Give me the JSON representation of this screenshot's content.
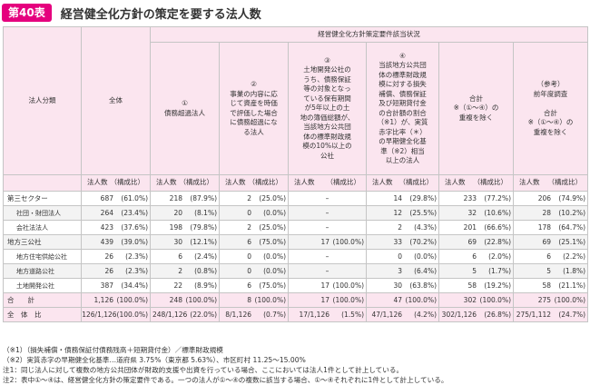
{
  "header": {
    "badge": "第40表",
    "title": "経営健全化方針の策定を要する法人数"
  },
  "table": {
    "group_header": "経営健全化方針策定要件該当状況",
    "col_category": "法人分類",
    "col_total": "全体",
    "col_1": "①\n債務超過法人",
    "col_2": "②\n事業の内容に応\nじて資産を時価\nで評価した場合\nに債務超過にな\nる法人",
    "col_3": "③\n土地開発公社の\nうち、債務保証\n等の対象となっ\nている保有期間\nが5年以上の土\n地の簿価総額が、\n当該地方公共団\n体の標準財政規\n模の10%以上の\n公社",
    "col_4": "④\n当該地方公共団\n体の標準財政規\n模に対する損失\n補償、債務保証\n及び短期貸付金\nの合計額の割合\n（※1）が、実質\n赤字比率（＊）\nの早期健全化基\n準（※2）相当\n以上の法人",
    "col_5": "合計\n※（①〜④）の\n重複を除く",
    "col_6": "（参考）\n前年度調査\n\n合計\n※（①〜④）の\n重複を除く",
    "sub_count": "法人数",
    "sub_ratio": "（構成比）",
    "rows": [
      {
        "name": "第三セクター",
        "sub": false,
        "cells": [
          [
            "687",
            "(61.0%)"
          ],
          [
            "218",
            "(87.9%)"
          ],
          [
            "2",
            "(25.0%)"
          ],
          [
            "–",
            ""
          ],
          [
            "14",
            "(29.8%)"
          ],
          [
            "233",
            "(77.2%)"
          ],
          [
            "206",
            "(74.9%)"
          ]
        ]
      },
      {
        "name": "社団・財団法人",
        "sub": true,
        "cells": [
          [
            "264",
            "(23.4%)"
          ],
          [
            "20",
            "(8.1%)"
          ],
          [
            "0",
            "(0.0%)"
          ],
          [
            "–",
            ""
          ],
          [
            "12",
            "(25.5%)"
          ],
          [
            "32",
            "(10.6%)"
          ],
          [
            "28",
            "(10.2%)"
          ]
        ]
      },
      {
        "name": "会社法法人",
        "sub": true,
        "cells": [
          [
            "423",
            "(37.6%)"
          ],
          [
            "198",
            "(79.8%)"
          ],
          [
            "2",
            "(25.0%)"
          ],
          [
            "–",
            ""
          ],
          [
            "2",
            "(4.3%)"
          ],
          [
            "201",
            "(66.6%)"
          ],
          [
            "178",
            "(64.7%)"
          ]
        ]
      },
      {
        "name": "地方三公社",
        "sub": false,
        "cells": [
          [
            "439",
            "(39.0%)"
          ],
          [
            "30",
            "(12.1%)"
          ],
          [
            "6",
            "(75.0%)"
          ],
          [
            "17",
            "(100.0%)"
          ],
          [
            "33",
            "(70.2%)"
          ],
          [
            "69",
            "(22.8%)"
          ],
          [
            "69",
            "(25.1%)"
          ]
        ]
      },
      {
        "name": "地方住宅供給公社",
        "sub": true,
        "cells": [
          [
            "26",
            "(2.3%)"
          ],
          [
            "6",
            "(2.4%)"
          ],
          [
            "0",
            "(0.0%)"
          ],
          [
            "–",
            ""
          ],
          [
            "0",
            "(0.0%)"
          ],
          [
            "6",
            "(2.0%)"
          ],
          [
            "6",
            "(2.2%)"
          ]
        ]
      },
      {
        "name": "地方道路公社",
        "sub": true,
        "cells": [
          [
            "26",
            "(2.3%)"
          ],
          [
            "2",
            "(0.8%)"
          ],
          [
            "0",
            "(0.0%)"
          ],
          [
            "–",
            ""
          ],
          [
            "3",
            "(6.4%)"
          ],
          [
            "5",
            "(1.7%)"
          ],
          [
            "5",
            "(1.8%)"
          ]
        ]
      },
      {
        "name": "土地開発公社",
        "sub": true,
        "cells": [
          [
            "387",
            "(34.4%)"
          ],
          [
            "22",
            "(8.9%)"
          ],
          [
            "6",
            "(75.0%)"
          ],
          [
            "17",
            "(100.0%)"
          ],
          [
            "30",
            "(63.8%)"
          ],
          [
            "58",
            "(19.2%)"
          ],
          [
            "58",
            "(21.1%)"
          ]
        ]
      },
      {
        "name": "合　　計",
        "sub": false,
        "total": true,
        "cells": [
          [
            "1,126",
            "(100.0%)"
          ],
          [
            "248",
            "(100.0%)"
          ],
          [
            "8",
            "(100.0%)"
          ],
          [
            "17",
            "(100.0%)"
          ],
          [
            "47",
            "(100.0%)"
          ],
          [
            "302",
            "(100.0%)"
          ],
          [
            "275",
            "(100.0%)"
          ]
        ]
      },
      {
        "name": "全　体　比",
        "sub": false,
        "total": true,
        "cells": [
          [
            "1,126/1,126",
            "(100.0%)"
          ],
          [
            "248/1,126",
            "(22.0%)"
          ],
          [
            "8/1,126",
            "(0.7%)"
          ],
          [
            "17/1,126",
            "(1.5%)"
          ],
          [
            "47/1,126",
            "(4.2%)"
          ],
          [
            "302/1,126",
            "(26.8%)"
          ],
          [
            "275/1,112",
            "(24.7%)"
          ]
        ]
      }
    ]
  },
  "notes": [
    "（※1）（損失補償・債務保証付債務残高＋短期貸付金）／標準財政規模",
    "（※2）実質赤字の早期健全化基準…道府県 3.75%（東京都 5.63%）、市区町村 11.25〜15.00%",
    "注1：同じ法人に対して複数の地方公共団体が財政的支援や出資を行っている場合、ここにおいては法人1件として計上している。",
    "注2：表中①〜④は、経営健全化方針の策定要件である。一つの法人が①〜④の複数に該当する場合、①〜④それぞれに1件として計上している。"
  ]
}
